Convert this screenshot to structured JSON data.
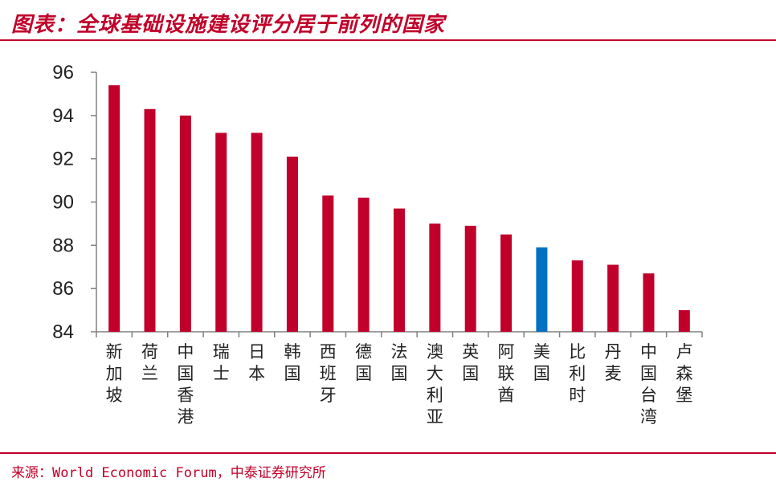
{
  "header": {
    "title": "图表：全球基础设施建设评分居于前列的国家"
  },
  "footer": {
    "source": "来源：World Economic Forum，中泰证券研究所"
  },
  "colors": {
    "accent": "#c0002a",
    "highlight": "#0070c0",
    "axis": "#808080"
  },
  "chart_data": {
    "type": "bar",
    "title": "",
    "xlabel": "",
    "ylabel": "",
    "ylim": [
      84,
      96
    ],
    "yticks": [
      84,
      86,
      88,
      90,
      92,
      94,
      96
    ],
    "grid": false,
    "categories": [
      "新加坡",
      "荷兰",
      "中国香港",
      "瑞士",
      "日本",
      "韩国",
      "西班牙",
      "德国",
      "法国",
      "澳大利亚",
      "英国",
      "阿联酋",
      "美国",
      "比利时",
      "丹麦",
      "中国台湾",
      "卢森堡"
    ],
    "values": [
      95.4,
      94.3,
      94.0,
      93.2,
      93.2,
      92.1,
      90.3,
      90.2,
      89.7,
      89.0,
      88.9,
      88.5,
      87.9,
      87.3,
      87.1,
      86.7,
      85.0
    ],
    "highlighted_category": "美国"
  }
}
